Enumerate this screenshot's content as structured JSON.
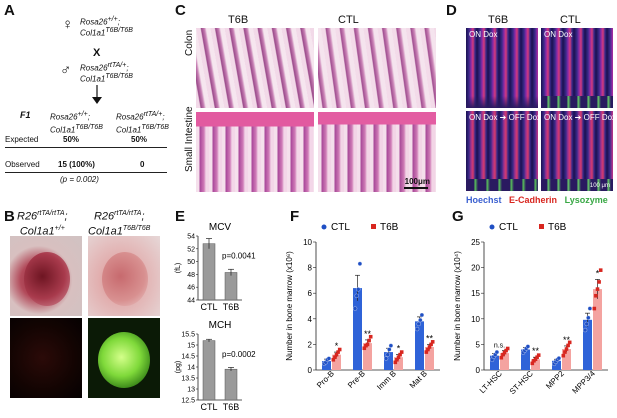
{
  "panels": {
    "A": {
      "letter": "A",
      "female_line1": "Rosa26",
      "female_sup1": "+/+",
      "female_line1_end": ";",
      "female_line2": "Col1a1",
      "female_sup2": "T6B/T6B",
      "cross": "X",
      "male_line1": "Rosa26",
      "male_sup1": "rtTA/+",
      "male_line1_end": ";",
      "male_line2": "Col1a1",
      "male_sup2": "T6B/T6B",
      "f1_label": "F1",
      "geno1_line1": "Rosa26",
      "geno1_sup1": "+/+",
      "geno1_line2": "Col1a1",
      "geno1_sup2": "T6B/T6B",
      "geno2_line1": "Rosa26",
      "geno2_sup1": "rtTA/+",
      "geno2_line2": "Col1a1",
      "geno2_sup2": "T6B/T6B",
      "expected_label": "Expected",
      "expected_1": "50%",
      "expected_2": "50%",
      "observed_label": "Observed",
      "observed_1": "15 (100%)",
      "observed_2": "0",
      "pvalue": "(p = 0.002)"
    },
    "B": {
      "letter": "B",
      "label1_line1": "R26",
      "label1_sup1": "rtTA/rtTA",
      "label1_line2": "Col1a1",
      "label1_sup2": "+/+",
      "label2_line1": "R26",
      "label2_sup1": "rtTA/rtTA",
      "label2_line2": "Col1a1",
      "label2_sup2": "T6B/T6B"
    },
    "C": {
      "letter": "C",
      "col1": "T6B",
      "col2": "CTL",
      "row1": "Colon",
      "row2": "Small Intestine",
      "scale": "100μm"
    },
    "D": {
      "letter": "D",
      "col1": "T6B",
      "col2": "CTL",
      "on_dox": "ON Dox",
      "on_off_dox": "ON Dox ➔ OFF Dox",
      "scale": "100 μm",
      "legend_hoechst": "Hoechst",
      "legend_ecad": "E-Cadherin",
      "legend_lyz": "Lysozyme"
    },
    "E": {
      "letter": "E"
    },
    "F": {
      "letter": "F"
    },
    "G": {
      "letter": "G"
    }
  },
  "colors": {
    "ctl": "#1f4fc4",
    "t6b": "#d8261f",
    "t6b_bar": "#f4a3a0",
    "ctl_bar": "#2f63d8",
    "gray_bar": "#9a9a9a",
    "hoechst": "#3a5fd0",
    "ecad": "#d8261f",
    "lyz": "#39a845"
  },
  "chart_data": [
    {
      "id": "E-MCV",
      "type": "bar",
      "title": "MCV",
      "ylabel": "(fL)",
      "categories": [
        "CTL",
        "T6B"
      ],
      "values": [
        52.8,
        48.3
      ],
      "errors": [
        0.8,
        0.5
      ],
      "ylim": [
        44,
        54
      ],
      "yticks": [
        44,
        46,
        48,
        50,
        52,
        54
      ],
      "annotation": "p=0.0041"
    },
    {
      "id": "E-MCH",
      "type": "bar",
      "title": "MCH",
      "ylabel": "(pg)",
      "categories": [
        "CTL",
        "T6B"
      ],
      "values": [
        15.2,
        13.9
      ],
      "errors": [
        0.06,
        0.08
      ],
      "ylim": [
        12.5,
        15.5
      ],
      "yticks": [
        12.5,
        13,
        13.5,
        14,
        14.5,
        15,
        15.5
      ],
      "annotation": "p=0.0002"
    },
    {
      "id": "F",
      "type": "bar",
      "ylabel": "Number in bone marrow (x10⁶)",
      "categories": [
        "Pro-B",
        "Pre-B",
        "Imm B",
        "Mat B"
      ],
      "ylim": [
        0,
        10
      ],
      "yticks": [
        0,
        2,
        4,
        6,
        8,
        10
      ],
      "legend": [
        "CTL",
        "T6B"
      ],
      "significance": [
        "*",
        "**",
        "*",
        "**"
      ],
      "series": [
        {
          "name": "CTL",
          "values": [
            0.7,
            6.4,
            1.4,
            3.8
          ],
          "errors": [
            0.15,
            1.0,
            0.3,
            0.35
          ],
          "points": [
            [
              0.5,
              0.6,
              0.8,
              0.9
            ],
            [
              4.8,
              5.8,
              6.3,
              8.3
            ],
            [
              0.9,
              1.2,
              1.6,
              1.9
            ],
            [
              3.2,
              3.6,
              3.9,
              4.3
            ]
          ]
        },
        {
          "name": "T6B",
          "values": [
            1.2,
            2.1,
            1.0,
            1.8
          ],
          "errors": [
            0.2,
            0.25,
            0.2,
            0.2
          ],
          "points": [
            [
              0.8,
              1.0,
              1.2,
              1.4,
              1.6
            ],
            [
              1.7,
              1.9,
              2.0,
              2.3,
              2.6
            ],
            [
              0.6,
              0.8,
              1.0,
              1.2,
              1.4
            ],
            [
              1.4,
              1.6,
              1.8,
              2.0,
              2.2
            ]
          ]
        }
      ]
    },
    {
      "id": "G",
      "type": "bar",
      "ylabel": "Number in bone marrow (x10⁴)",
      "categories": [
        "LT-HSC",
        "ST-HSC",
        "MPP2",
        "MPP3/4"
      ],
      "ylim": [
        0,
        25
      ],
      "yticks": [
        0,
        5,
        10,
        15,
        20,
        25
      ],
      "legend": [
        "CTL",
        "T6B"
      ],
      "significance": [
        "n.s.",
        "**",
        "**",
        "*"
      ],
      "series": [
        {
          "name": "CTL",
          "values": [
            2.8,
            4.0,
            1.8,
            9.8
          ],
          "errors": [
            0.4,
            0.4,
            0.3,
            1.3
          ],
          "points": [
            [
              2.0,
              2.6,
              3.0,
              3.5
            ],
            [
              3.4,
              3.8,
              4.2,
              4.6
            ],
            [
              1.2,
              1.6,
              2.0,
              2.3
            ],
            [
              7.8,
              9.0,
              10.2,
              12.0
            ]
          ]
        },
        {
          "name": "T6B",
          "values": [
            3.3,
            2.1,
            4.1,
            15.8
          ],
          "errors": [
            0.5,
            0.4,
            0.6,
            1.9
          ],
          "points": [
            [
              2.4,
              3.0,
              3.4,
              3.8,
              4.2
            ],
            [
              1.3,
              1.8,
              2.1,
              2.5,
              2.9
            ],
            [
              2.8,
              3.5,
              4.1,
              4.8,
              5.4
            ],
            [
              12.0,
              14.5,
              15.8,
              17.2,
              19.5
            ]
          ]
        }
      ]
    }
  ]
}
